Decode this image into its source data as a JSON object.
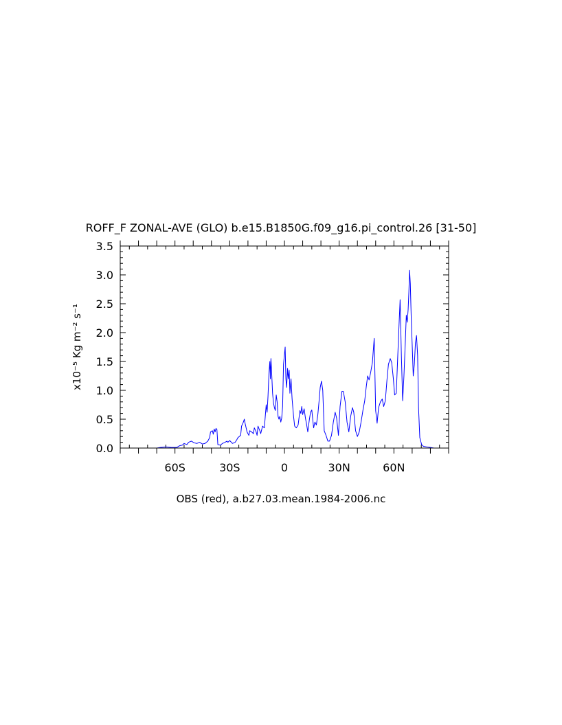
{
  "chart_data": {
    "type": "line",
    "title": "ROFF_F ZONAL-AVE (GLO) b.e15.B1850G.f09_g16.pi_control.26 [31-50]",
    "ylabel": "x10⁻⁵ Kg m⁻² s⁻¹",
    "xlabel": "OBS (red), a.b27.03.mean.1984-2006.nc",
    "xlim": [
      -90,
      90
    ],
    "ylim": [
      0,
      3.5
    ],
    "xticks": [
      {
        "value": -60,
        "label": "60S"
      },
      {
        "value": -30,
        "label": "30S"
      },
      {
        "value": 0,
        "label": "0"
      },
      {
        "value": 30,
        "label": "30N"
      },
      {
        "value": 60,
        "label": "60N"
      }
    ],
    "yticks": [
      {
        "value": 0.0,
        "label": "0.0"
      },
      {
        "value": 0.5,
        "label": "0.5"
      },
      {
        "value": 1.0,
        "label": "1.0"
      },
      {
        "value": 1.5,
        "label": "1.5"
      },
      {
        "value": 2.0,
        "label": "2.0"
      },
      {
        "value": 2.5,
        "label": "2.5"
      },
      {
        "value": 3.0,
        "label": "3.0"
      },
      {
        "value": 3.5,
        "label": "3.5"
      }
    ],
    "grid": false,
    "series": [
      {
        "color": "#0000ff",
        "points": [
          [
            -70.0,
            0.0
          ],
          [
            -68.0,
            0.01
          ],
          [
            -65.0,
            0.02
          ],
          [
            -62.0,
            0.01
          ],
          [
            -59.0,
            0.01
          ],
          [
            -57.5,
            0.04
          ],
          [
            -56.0,
            0.05
          ],
          [
            -55.0,
            0.08
          ],
          [
            -53.5,
            0.06
          ],
          [
            -52.5,
            0.1
          ],
          [
            -51.0,
            0.12
          ],
          [
            -49.5,
            0.09
          ],
          [
            -48.0,
            0.08
          ],
          [
            -46.5,
            0.1
          ],
          [
            -45.0,
            0.07
          ],
          [
            -43.5,
            0.08
          ],
          [
            -42.0,
            0.12
          ],
          [
            -41.0,
            0.18
          ],
          [
            -40.5,
            0.28
          ],
          [
            -39.5,
            0.3
          ],
          [
            -39.0,
            0.24
          ],
          [
            -38.5,
            0.33
          ],
          [
            -38.0,
            0.28
          ],
          [
            -37.5,
            0.34
          ],
          [
            -37.0,
            0.32
          ],
          [
            -36.5,
            0.06
          ],
          [
            -35.0,
            0.05
          ],
          [
            -34.0,
            0.08
          ],
          [
            -32.5,
            0.1
          ],
          [
            -31.5,
            0.12
          ],
          [
            -31.0,
            0.1
          ],
          [
            -30.0,
            0.13
          ],
          [
            -28.5,
            0.08
          ],
          [
            -27.0,
            0.1
          ],
          [
            -26.0,
            0.15
          ],
          [
            -25.5,
            0.18
          ],
          [
            -24.0,
            0.22
          ],
          [
            -23.5,
            0.38
          ],
          [
            -22.5,
            0.45
          ],
          [
            -22.0,
            0.5
          ],
          [
            -21.5,
            0.42
          ],
          [
            -20.5,
            0.28
          ],
          [
            -19.5,
            0.22
          ],
          [
            -19.0,
            0.3
          ],
          [
            -18.0,
            0.28
          ],
          [
            -17.0,
            0.25
          ],
          [
            -16.5,
            0.35
          ],
          [
            -15.5,
            0.28
          ],
          [
            -15.0,
            0.22
          ],
          [
            -14.5,
            0.38
          ],
          [
            -13.5,
            0.3
          ],
          [
            -13.0,
            0.25
          ],
          [
            -12.0,
            0.38
          ],
          [
            -11.0,
            0.35
          ],
          [
            -10.0,
            0.75
          ],
          [
            -9.5,
            0.62
          ],
          [
            -9.0,
            0.9
          ],
          [
            -8.5,
            1.28
          ],
          [
            -8.0,
            1.5
          ],
          [
            -7.7,
            1.2
          ],
          [
            -7.4,
            1.55
          ],
          [
            -7.0,
            1.3
          ],
          [
            -6.5,
            0.95
          ],
          [
            -6.0,
            0.78
          ],
          [
            -5.5,
            0.7
          ],
          [
            -5.0,
            0.65
          ],
          [
            -4.5,
            0.92
          ],
          [
            -4.0,
            0.8
          ],
          [
            -3.5,
            0.55
          ],
          [
            -3.0,
            0.5
          ],
          [
            -2.5,
            0.55
          ],
          [
            -2.0,
            0.45
          ],
          [
            -1.5,
            0.52
          ],
          [
            -1.0,
            0.72
          ],
          [
            -0.5,
            1.45
          ],
          [
            0.0,
            1.62
          ],
          [
            0.4,
            1.75
          ],
          [
            0.8,
            1.2
          ],
          [
            1.2,
            1.05
          ],
          [
            1.7,
            1.38
          ],
          [
            2.1,
            1.2
          ],
          [
            2.6,
            1.35
          ],
          [
            3.0,
            0.95
          ],
          [
            3.6,
            1.2
          ],
          [
            4.2,
            0.85
          ],
          [
            5.0,
            0.55
          ],
          [
            5.6,
            0.38
          ],
          [
            6.5,
            0.35
          ],
          [
            7.5,
            0.4
          ],
          [
            8.5,
            0.65
          ],
          [
            9.0,
            0.6
          ],
          [
            9.5,
            0.72
          ],
          [
            10.0,
            0.58
          ],
          [
            10.8,
            0.68
          ],
          [
            11.5,
            0.52
          ],
          [
            12.2,
            0.4
          ],
          [
            12.8,
            0.28
          ],
          [
            13.6,
            0.48
          ],
          [
            14.3,
            0.62
          ],
          [
            15.0,
            0.66
          ],
          [
            15.5,
            0.5
          ],
          [
            16.0,
            0.35
          ],
          [
            16.7,
            0.45
          ],
          [
            17.5,
            0.4
          ],
          [
            18.3,
            0.58
          ],
          [
            19.0,
            0.82
          ],
          [
            19.6,
            1.05
          ],
          [
            20.3,
            1.16
          ],
          [
            21.0,
            1.0
          ],
          [
            21.8,
            0.3
          ],
          [
            22.8,
            0.22
          ],
          [
            23.8,
            0.12
          ],
          [
            24.7,
            0.12
          ],
          [
            25.8,
            0.22
          ],
          [
            26.8,
            0.45
          ],
          [
            27.8,
            0.62
          ],
          [
            28.6,
            0.52
          ],
          [
            29.6,
            0.22
          ],
          [
            30.5,
            0.72
          ],
          [
            31.5,
            0.98
          ],
          [
            32.3,
            0.98
          ],
          [
            33.3,
            0.8
          ],
          [
            34.3,
            0.45
          ],
          [
            35.3,
            0.28
          ],
          [
            36.3,
            0.55
          ],
          [
            37.3,
            0.7
          ],
          [
            38.0,
            0.62
          ],
          [
            39.0,
            0.3
          ],
          [
            40.0,
            0.2
          ],
          [
            41.0,
            0.28
          ],
          [
            42.0,
            0.45
          ],
          [
            43.0,
            0.65
          ],
          [
            44.0,
            0.82
          ],
          [
            44.8,
            1.05
          ],
          [
            45.6,
            1.25
          ],
          [
            46.4,
            1.18
          ],
          [
            47.2,
            1.3
          ],
          [
            48.2,
            1.48
          ],
          [
            49.2,
            1.9
          ],
          [
            50.0,
            0.65
          ],
          [
            50.8,
            0.43
          ],
          [
            51.6,
            0.7
          ],
          [
            52.6,
            0.8
          ],
          [
            53.6,
            0.85
          ],
          [
            54.4,
            0.72
          ],
          [
            55.3,
            0.82
          ],
          [
            56.2,
            1.18
          ],
          [
            57.0,
            1.45
          ],
          [
            58.0,
            1.55
          ],
          [
            58.8,
            1.48
          ],
          [
            59.7,
            1.2
          ],
          [
            60.4,
            0.92
          ],
          [
            61.3,
            0.95
          ],
          [
            62.0,
            1.5
          ],
          [
            62.7,
            2.05
          ],
          [
            63.4,
            2.57
          ],
          [
            64.1,
            1.6
          ],
          [
            64.8,
            0.82
          ],
          [
            65.5,
            1.25
          ],
          [
            66.2,
            1.8
          ],
          [
            66.8,
            2.3
          ],
          [
            67.3,
            2.18
          ],
          [
            67.8,
            2.4
          ],
          [
            68.2,
            2.7
          ],
          [
            68.6,
            3.08
          ],
          [
            69.0,
            2.85
          ],
          [
            69.5,
            2.25
          ],
          [
            70.1,
            1.72
          ],
          [
            70.6,
            1.25
          ],
          [
            71.2,
            1.45
          ],
          [
            71.8,
            1.82
          ],
          [
            72.4,
            1.95
          ],
          [
            73.0,
            1.6
          ],
          [
            73.5,
            0.7
          ],
          [
            74.2,
            0.18
          ],
          [
            75.2,
            0.06
          ],
          [
            76.2,
            0.03
          ],
          [
            78.0,
            0.02
          ],
          [
            80.0,
            0.01
          ],
          [
            82.0,
            0.0
          ]
        ]
      }
    ]
  }
}
